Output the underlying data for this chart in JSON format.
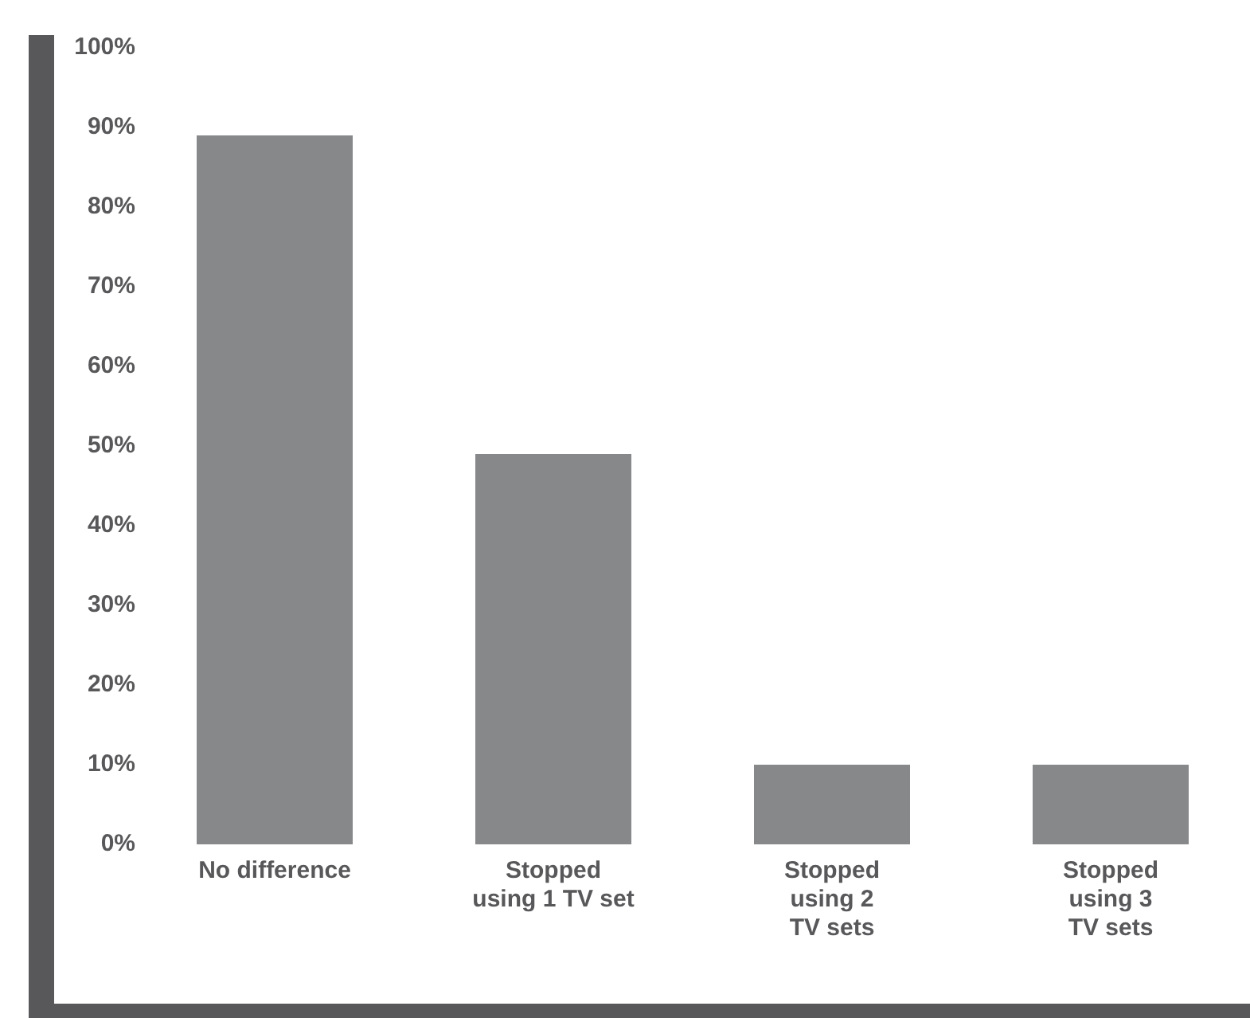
{
  "chart_data": {
    "type": "bar",
    "categories": [
      "No difference",
      "Stopped using 1 TV set",
      "Stopped using 2 TV sets",
      "Stopped using 3 TV sets"
    ],
    "values": [
      89,
      49,
      10,
      10
    ],
    "color": "#87888a",
    "ylim": [
      0,
      100
    ],
    "yticks": [
      {
        "value": 0,
        "label": "0%"
      },
      {
        "value": 10,
        "label": "10%"
      },
      {
        "value": 20,
        "label": "20%"
      },
      {
        "value": 30,
        "label": "30%"
      },
      {
        "value": 40,
        "label": "40%"
      },
      {
        "value": 50,
        "label": "50%"
      },
      {
        "value": 60,
        "label": "60%"
      },
      {
        "value": 70,
        "label": "70%"
      },
      {
        "value": 80,
        "label": "80%"
      },
      {
        "value": 90,
        "label": "90%"
      },
      {
        "value": 100,
        "label": "100%"
      }
    ],
    "grid": false,
    "legend": false
  }
}
